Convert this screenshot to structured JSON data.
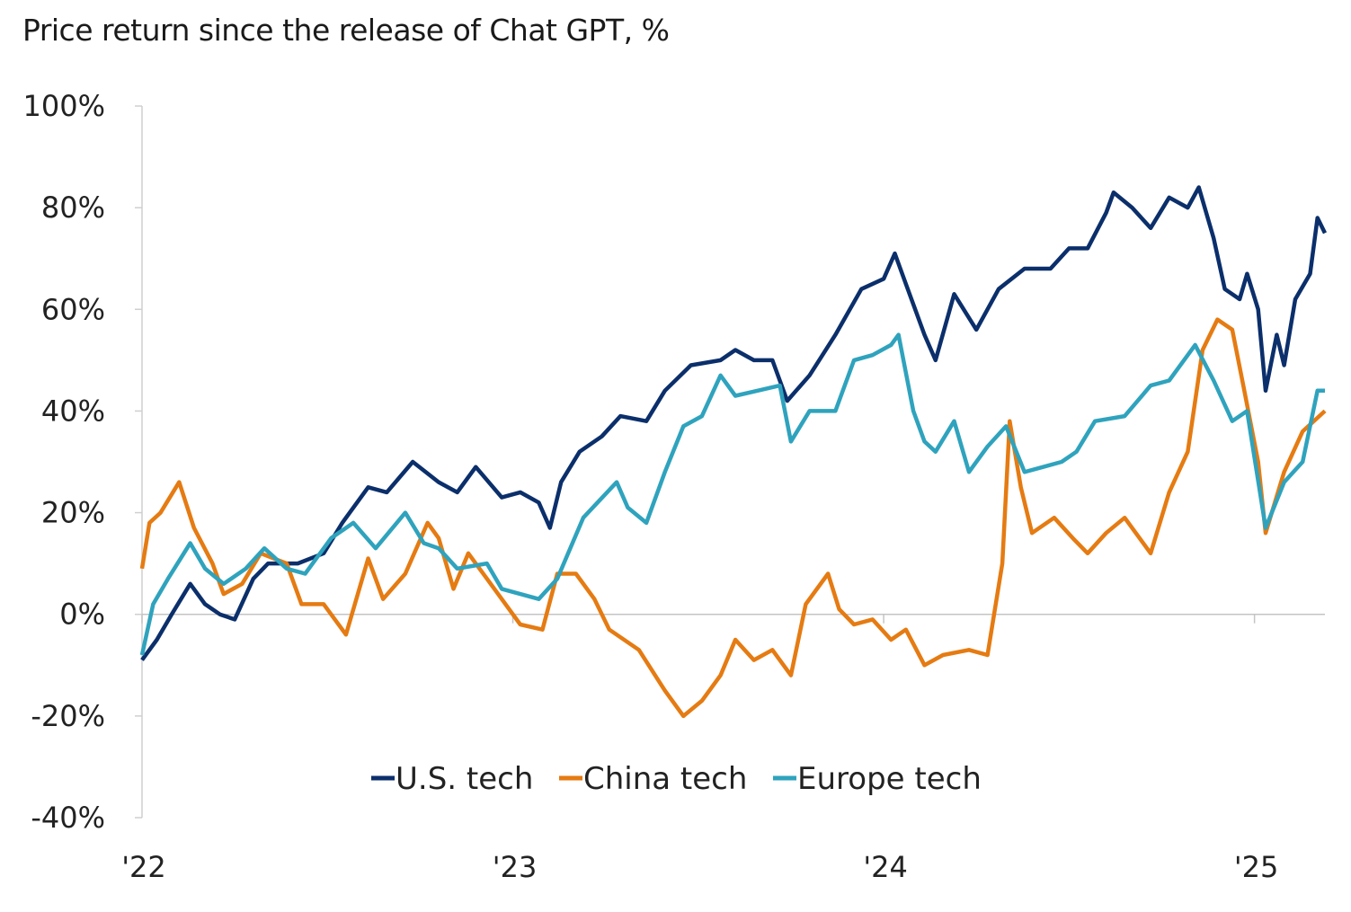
{
  "chart_data": {
    "type": "line",
    "title": "Price return since the release of Chat GPT, %",
    "xlabel": "",
    "ylabel": "",
    "ylim": [
      -40,
      100
    ],
    "xlim": [
      2022.0,
      2025.19
    ],
    "y_ticks": [
      "100%",
      "80%",
      "60%",
      "40%",
      "20%",
      "0%",
      "-20%",
      "-40%"
    ],
    "y_tick_values": [
      100,
      80,
      60,
      40,
      20,
      0,
      -20,
      -40
    ],
    "x_ticks": [
      "'22",
      "'23",
      "'24",
      "'25"
    ],
    "x_tick_values": [
      2022,
      2023,
      2024,
      2025
    ],
    "grid": false,
    "legend_position": "bottom-center",
    "series": [
      {
        "name": "U.S. tech",
        "color": "#0b2f6b",
        "x": [
          2022.0,
          2022.04,
          2022.08,
          2022.13,
          2022.17,
          2022.21,
          2022.25,
          2022.3,
          2022.34,
          2022.42,
          2022.49,
          2022.54,
          2022.61,
          2022.66,
          2022.73,
          2022.8,
          2022.85,
          2022.9,
          2022.97,
          2023.02,
          2023.07,
          2023.1,
          2023.13,
          2023.18,
          2023.24,
          2023.29,
          2023.36,
          2023.41,
          2023.48,
          2023.56,
          2023.6,
          2023.65,
          2023.7,
          2023.74,
          2023.8,
          2023.87,
          2023.94,
          2024.0,
          2024.03,
          2024.06,
          2024.11,
          2024.14,
          2024.19,
          2024.25,
          2024.31,
          2024.38,
          2024.45,
          2024.5,
          2024.55,
          2024.6,
          2024.62,
          2024.67,
          2024.72,
          2024.77,
          2024.82,
          2024.85,
          2024.89,
          2024.92,
          2024.96,
          2024.98,
          2025.01,
          2025.03,
          2025.06,
          2025.08,
          2025.11,
          2025.15,
          2025.17,
          2025.19
        ],
        "values": [
          -9,
          -5,
          0,
          6,
          2,
          0,
          -1,
          7,
          10,
          10,
          12,
          18,
          25,
          24,
          30,
          26,
          24,
          29,
          23,
          24,
          22,
          17,
          26,
          32,
          35,
          39,
          38,
          44,
          49,
          50,
          52,
          50,
          50,
          42,
          47,
          55,
          64,
          66,
          71,
          65,
          55,
          50,
          63,
          56,
          64,
          68,
          68,
          72,
          72,
          79,
          83,
          80,
          76,
          82,
          80,
          84,
          74,
          64,
          62,
          67,
          60,
          44,
          55,
          49,
          62,
          67,
          78,
          75
        ]
      },
      {
        "name": "China tech",
        "color": "#e57b12",
        "x": [
          2022.0,
          2022.02,
          2022.05,
          2022.1,
          2022.14,
          2022.19,
          2022.22,
          2022.27,
          2022.32,
          2022.39,
          2022.43,
          2022.49,
          2022.55,
          2022.61,
          2022.65,
          2022.71,
          2022.77,
          2022.8,
          2022.84,
          2022.88,
          2022.93,
          2022.97,
          2023.02,
          2023.08,
          2023.12,
          2023.17,
          2023.22,
          2023.26,
          2023.34,
          2023.41,
          2023.46,
          2023.51,
          2023.56,
          2023.6,
          2023.65,
          2023.7,
          2023.75,
          2023.79,
          2023.85,
          2023.88,
          2023.92,
          2023.97,
          2024.02,
          2024.06,
          2024.11,
          2024.16,
          2024.23,
          2024.28,
          2024.32,
          2024.34,
          2024.37,
          2024.4,
          2024.46,
          2024.51,
          2024.55,
          2024.6,
          2024.65,
          2024.72,
          2024.77,
          2024.82,
          2024.86,
          2024.9,
          2024.94,
          2024.97,
          2025.01,
          2025.03,
          2025.08,
          2025.13,
          2025.19
        ],
        "values": [
          9,
          18,
          20,
          26,
          17,
          10,
          4,
          6,
          12,
          10,
          2,
          2,
          -4,
          11,
          3,
          8,
          18,
          15,
          5,
          12,
          7,
          3,
          -2,
          -3,
          8,
          8,
          3,
          -3,
          -7,
          -15,
          -20,
          -17,
          -12,
          -5,
          -9,
          -7,
          -12,
          2,
          8,
          1,
          -2,
          -1,
          -5,
          -3,
          -10,
          -8,
          -7,
          -8,
          10,
          38,
          25,
          16,
          19,
          15,
          12,
          16,
          19,
          12,
          24,
          32,
          52,
          58,
          56,
          45,
          30,
          16,
          28,
          36,
          40
        ]
      },
      {
        "name": "Europe tech",
        "color": "#2fa3bd",
        "x": [
          2022.0,
          2022.03,
          2022.07,
          2022.13,
          2022.17,
          2022.22,
          2022.28,
          2022.33,
          2022.39,
          2022.44,
          2022.51,
          2022.57,
          2022.63,
          2022.71,
          2022.76,
          2022.8,
          2022.85,
          2022.93,
          2022.97,
          2023.02,
          2023.07,
          2023.12,
          2023.19,
          2023.28,
          2023.31,
          2023.36,
          2023.41,
          2023.46,
          2023.51,
          2023.56,
          2023.6,
          2023.66,
          2023.72,
          2023.75,
          2023.8,
          2023.87,
          2023.92,
          2023.97,
          2024.02,
          2024.04,
          2024.08,
          2024.11,
          2024.14,
          2024.19,
          2024.23,
          2024.28,
          2024.33,
          2024.38,
          2024.43,
          2024.48,
          2024.52,
          2024.57,
          2024.65,
          2024.72,
          2024.77,
          2024.84,
          2024.89,
          2024.94,
          2024.98,
          2025.03,
          2025.08,
          2025.13,
          2025.17,
          2025.19
        ],
        "values": [
          -8,
          2,
          7,
          14,
          9,
          6,
          9,
          13,
          9,
          8,
          15,
          18,
          13,
          20,
          14,
          13,
          9,
          10,
          5,
          4,
          3,
          7,
          19,
          26,
          21,
          18,
          28,
          37,
          39,
          47,
          43,
          44,
          45,
          34,
          40,
          40,
          50,
          51,
          53,
          55,
          40,
          34,
          32,
          38,
          28,
          33,
          37,
          28,
          29,
          30,
          32,
          38,
          39,
          45,
          46,
          53,
          46,
          38,
          40,
          17,
          26,
          30,
          44,
          44
        ]
      }
    ]
  }
}
